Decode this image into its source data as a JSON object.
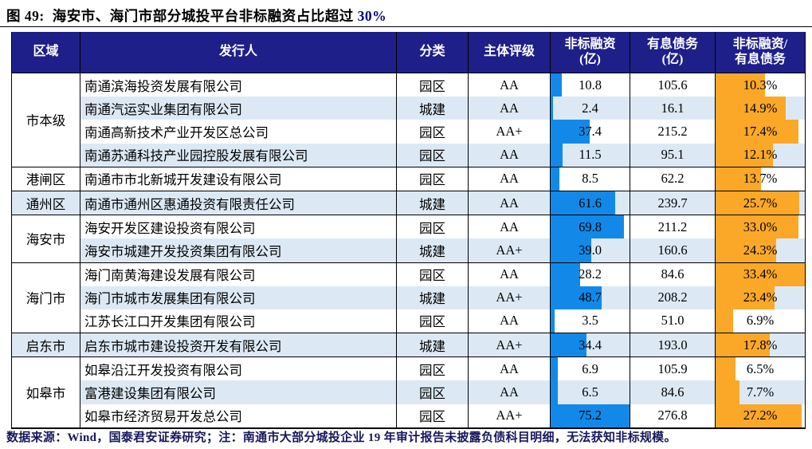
{
  "title": {
    "prefix": "图 49:",
    "text": "海安市、海门市部分城投平台非标融资占比超过 ",
    "highlight": "30%"
  },
  "footer": {
    "text": "数据来源：Wind，国泰君安证券研究；注：南通市大部分城投企业 19 年审计报告未披露负债科目明细，无法获知非标规模。"
  },
  "colors": {
    "header_bg": "#1F1F8A",
    "stripe": "#DCE9F5",
    "bar_blue": "#1289E8",
    "bar_orange": "#FBA829",
    "border": "#000000",
    "footer_text": "#17175F",
    "title_highlight": "#00007F"
  },
  "chart_data": {
    "type": "table",
    "title": "图 49: 海安市、海门市部分城投平台非标融资占比超过 30%",
    "columns": [
      "区域",
      "发行人",
      "分类",
      "主体评级",
      "非标融资\n(亿)",
      "有息债务\n(亿)",
      "非标融资/\n有息债务"
    ],
    "bar_scales": {
      "nsf_bar_max": 75.2,
      "nsf_bar_color": "#1289E8",
      "ratio_bar_color": "#FBA829"
    },
    "groups": [
      {
        "region": "市本级",
        "rows": [
          {
            "issuer": "南通滨海投资发展有限公司",
            "category": "园区",
            "rating": "AA",
            "nsf": "10.8",
            "nsf_value": 10.8,
            "debt": "105.6",
            "debt_value": 105.6,
            "ratio": "10.3%",
            "ratio_value": 10.3,
            "ratio_bar_pct": 55
          },
          {
            "issuer": "南通汽运实业集团有限公司",
            "category": "城建",
            "rating": "AA",
            "nsf": "2.4",
            "nsf_value": 2.4,
            "debt": "16.1",
            "debt_value": 16.1,
            "ratio": "14.9%",
            "ratio_value": 14.9,
            "ratio_bar_pct": 79
          },
          {
            "issuer": "南通高新技术产业开发区总公司",
            "category": "园区",
            "rating": "AA+",
            "nsf": "37.4",
            "nsf_value": 37.4,
            "debt": "215.2",
            "debt_value": 215.2,
            "ratio": "17.4%",
            "ratio_value": 17.4,
            "ratio_bar_pct": 93
          },
          {
            "issuer": "南通苏通科技产业园控股发展有限公司",
            "category": "园区",
            "rating": "AA",
            "nsf": "11.5",
            "nsf_value": 11.5,
            "debt": "95.1",
            "debt_value": 95.1,
            "ratio": "12.1%",
            "ratio_value": 12.1,
            "ratio_bar_pct": 64
          }
        ]
      },
      {
        "region": "港闸区",
        "rows": [
          {
            "issuer": "南通市市北新城开发建设有限公司",
            "category": "园区",
            "rating": "AA",
            "nsf": "8.5",
            "nsf_value": 8.5,
            "debt": "62.2",
            "debt_value": 62.2,
            "ratio": "13.7%",
            "ratio_value": 13.7,
            "ratio_bar_pct": 51
          }
        ]
      },
      {
        "region": "通州区",
        "rows": [
          {
            "issuer": "南通市通州区惠通投资有限责任公司",
            "category": "城建",
            "rating": "AA",
            "nsf": "61.6",
            "nsf_value": 61.6,
            "debt": "239.7",
            "debt_value": 239.7,
            "ratio": "25.7%",
            "ratio_value": 25.7,
            "ratio_bar_pct": 94
          }
        ]
      },
      {
        "region": "海安市",
        "rows": [
          {
            "issuer": "海安开发区建设投资有限公司",
            "category": "园区",
            "rating": "AA",
            "nsf": "69.8",
            "nsf_value": 69.8,
            "debt": "211.2",
            "debt_value": 211.2,
            "ratio": "33.0%",
            "ratio_value": 33.0,
            "ratio_bar_pct": 93
          },
          {
            "issuer": "海安市城建开发投资集团有限公司",
            "category": "城建",
            "rating": "AA+",
            "nsf": "39.0",
            "nsf_value": 39.0,
            "debt": "160.6",
            "debt_value": 160.6,
            "ratio": "24.3%",
            "ratio_value": 24.3,
            "ratio_bar_pct": 68
          }
        ]
      },
      {
        "region": "海门市",
        "rows": [
          {
            "issuer": "海门南黄海建设发展有限公司",
            "category": "园区",
            "rating": "AA",
            "nsf": "28.2",
            "nsf_value": 28.2,
            "debt": "84.6",
            "debt_value": 84.6,
            "ratio": "33.4%",
            "ratio_value": 33.4,
            "ratio_bar_pct": 100
          },
          {
            "issuer": "海门市城市发展集团有限公司",
            "category": "城建",
            "rating": "AA+",
            "nsf": "48.7",
            "nsf_value": 48.7,
            "debt": "208.2",
            "debt_value": 208.2,
            "ratio": "23.4%",
            "ratio_value": 23.4,
            "ratio_bar_pct": 66
          },
          {
            "issuer": "江苏长江口开发集团有限公司",
            "category": "园区",
            "rating": "AA",
            "nsf": "3.5",
            "nsf_value": 3.5,
            "debt": "51.0",
            "debt_value": 51.0,
            "ratio": "6.9%",
            "ratio_value": 6.9,
            "ratio_bar_pct": 20
          }
        ]
      },
      {
        "region": "启东市",
        "rows": [
          {
            "issuer": "启东市城市建设投资开发有限公司",
            "category": "城建",
            "rating": "AA+",
            "nsf": "34.4",
            "nsf_value": 34.4,
            "debt": "193.0",
            "debt_value": 193.0,
            "ratio": "17.8%",
            "ratio_value": 17.8,
            "ratio_bar_pct": 61
          }
        ]
      },
      {
        "region": "如皋市",
        "rows": [
          {
            "issuer": "如皋沿江开发投资有限公司",
            "category": "园区",
            "rating": "AA",
            "nsf": "6.9",
            "nsf_value": 6.9,
            "debt": "105.9",
            "debt_value": 105.9,
            "ratio": "6.5%",
            "ratio_value": 6.5,
            "ratio_bar_pct": 22
          },
          {
            "issuer": "富港建设集团有限公司",
            "category": "园区",
            "rating": "AA",
            "nsf": "6.5",
            "nsf_value": 6.5,
            "debt": "84.6",
            "debt_value": 84.6,
            "ratio": "7.7%",
            "ratio_value": 7.7,
            "ratio_bar_pct": 27
          },
          {
            "issuer": "如皋市经济贸易开发总公司",
            "category": "园区",
            "rating": "AA+",
            "nsf": "75.2",
            "nsf_value": 75.2,
            "debt": "276.8",
            "debt_value": 276.8,
            "ratio": "27.2%",
            "ratio_value": 27.2,
            "ratio_bar_pct": 96
          }
        ]
      }
    ]
  }
}
